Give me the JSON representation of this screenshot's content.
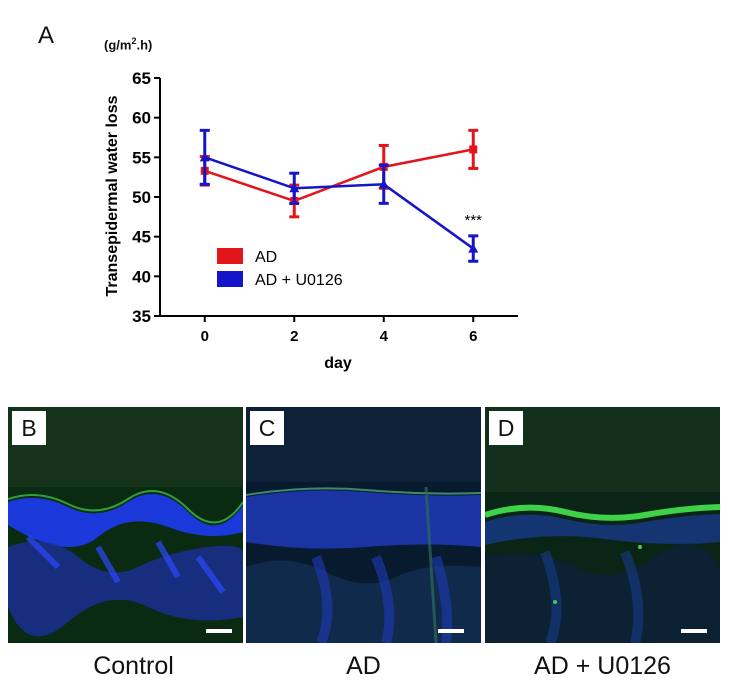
{
  "panel_A_letter": "A",
  "unit_label": {
    "base": "(g/m",
    "sup": "2",
    "tail": ".h)"
  },
  "chart_data": {
    "type": "line",
    "ylabel": "Transepidermal water loss",
    "xlabel": "day",
    "x": [
      0,
      2,
      4,
      6
    ],
    "xticks": [
      0,
      2,
      4,
      6
    ],
    "xlim": [
      -1,
      7
    ],
    "ylim": [
      35,
      65
    ],
    "yticks": [
      35,
      40,
      45,
      50,
      55,
      60,
      65
    ],
    "ytick_labels": [
      "35",
      "40",
      "45",
      "50",
      "55",
      "60",
      "65"
    ],
    "series": [
      {
        "name": "AD",
        "color": "#e3151b",
        "marker": "square",
        "values": [
          53.3,
          49.5,
          53.8,
          56.0
        ],
        "err": [
          1.8,
          2.0,
          2.7,
          2.4
        ]
      },
      {
        "name": "AD + U0126",
        "color": "#1414c8",
        "marker": "triangle",
        "values": [
          55.0,
          51.1,
          51.6,
          43.5
        ],
        "err": [
          3.4,
          1.9,
          2.4,
          1.6
        ]
      }
    ],
    "annotations": [
      {
        "x": 6,
        "y": 46.5,
        "text": "***"
      }
    ],
    "legend": "lower-left"
  },
  "micrographs": [
    {
      "letter": "B",
      "caption": "Control"
    },
    {
      "letter": "C",
      "caption": "AD"
    },
    {
      "letter": "D",
      "caption": "AD + U0126"
    }
  ],
  "colors": {
    "epidermis_green": "#3fd14a",
    "nuclei_blue": "#1f3cff",
    "background_green": "#0b2a12"
  }
}
